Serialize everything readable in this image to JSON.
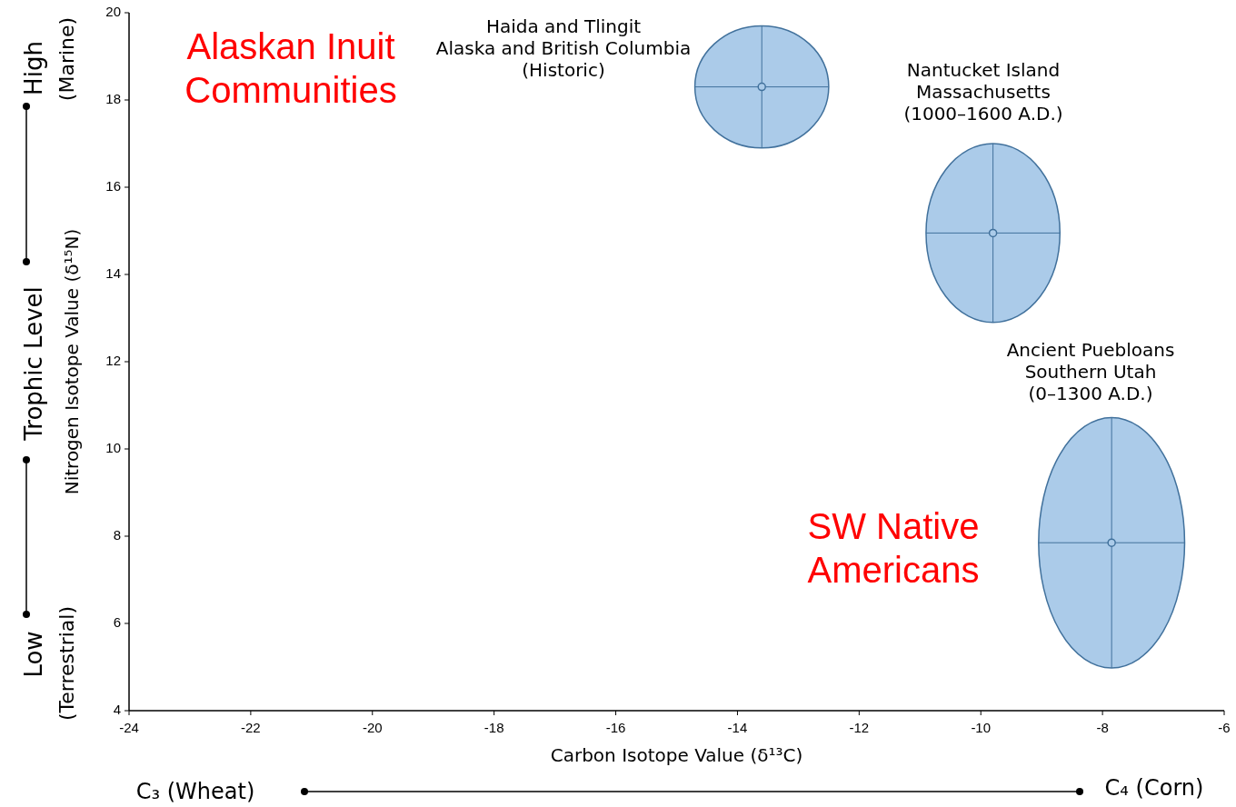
{
  "chart_data": {
    "type": "scatter",
    "xlabel": "Carbon Isotope Value (δ¹³C)",
    "ylabel": "Nitrogen Isotope Value (δ¹⁵N)",
    "x": [
      -13.6,
      -9.8,
      -7.85
    ],
    "series": [
      {
        "color": "#abcbe9",
        "values": [
          18.3,
          14.95,
          7.85
        ],
        "errors": [
          1.4,
          2.05,
          2.87
        ],
        "xerrors": [
          1.1,
          1.1,
          1.2
        ]
      }
    ],
    "xlim": [
      -24,
      -6
    ],
    "xticks": [
      -24,
      -22,
      -20,
      -18,
      -16,
      -14,
      -12,
      -10,
      -8,
      -6
    ],
    "ylim": [
      4,
      20
    ],
    "yticks": [
      4,
      6,
      8,
      10,
      12,
      14,
      16,
      18,
      20
    ],
    "grid": false,
    "annotations": [
      "High",
      "(Marine)",
      "Trophic Level",
      "Low",
      "(Terrestrial)",
      "C₃ (Wheat)",
      "C₄ (Corn)",
      "Haida and Tlingit\nAlaska and British Columbia\n(Historic)",
      "Nantucket Island\nMassachusetts\n(1000–1600 A.D.)",
      "Ancient Puebloans\nSouthern Utah\n(0–1300 A.D.)",
      "Alaskan Inuit\nCommunities",
      "SW Native\nAmericans"
    ]
  }
}
